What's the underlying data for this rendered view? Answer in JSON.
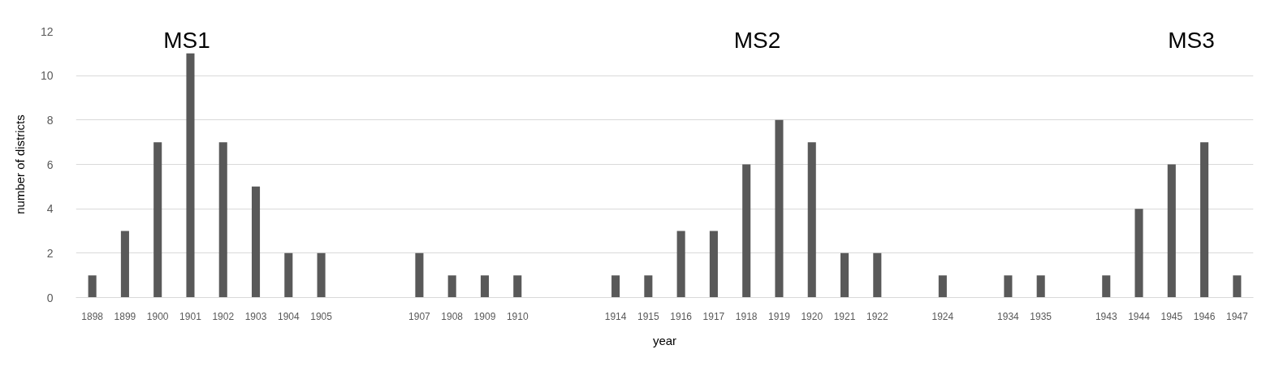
{
  "chart_data": {
    "type": "bar",
    "xlabel": "year",
    "ylabel": "number of districts",
    "categories": [
      "1898",
      "1899",
      "1900",
      "1901",
      "1902",
      "1903",
      "1904",
      "1905",
      null,
      null,
      "1907",
      "1908",
      "1909",
      "1910",
      null,
      null,
      "1914",
      "1915",
      "1916",
      "1917",
      "1918",
      "1919",
      "1920",
      "1921",
      "1922",
      null,
      "1924",
      null,
      "1934",
      "1935",
      null,
      "1943",
      "1944",
      "1945",
      "1946",
      "1947"
    ],
    "values": [
      1,
      3,
      7,
      11,
      7,
      5,
      2,
      2,
      null,
      null,
      2,
      1,
      1,
      1,
      null,
      null,
      1,
      1,
      3,
      3,
      6,
      8,
      7,
      2,
      2,
      null,
      1,
      null,
      1,
      1,
      null,
      1,
      4,
      6,
      7,
      1
    ],
    "color": "#595959",
    "ylim": [
      0,
      12
    ],
    "yticks": [
      0,
      2,
      4,
      6,
      8,
      10,
      12
    ],
    "grid": "y",
    "annotations": [
      "MS1",
      "MS2",
      "MS3"
    ]
  }
}
